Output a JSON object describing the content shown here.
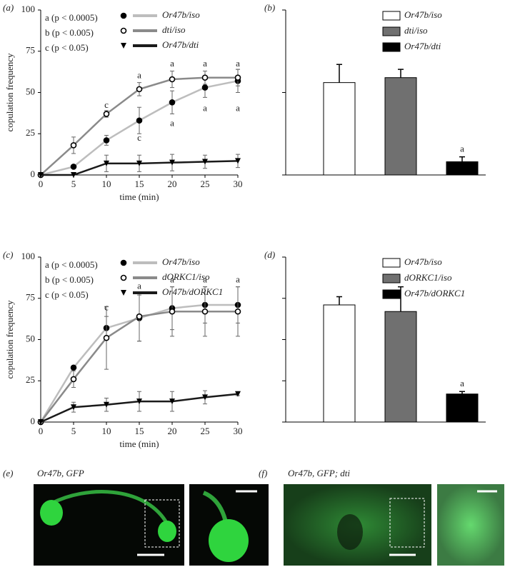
{
  "chart_data": [
    {
      "type": "line",
      "panel": "(a)",
      "ylabel": "copulation frequency",
      "xlabel": "time (min)",
      "notes": [
        "a (p < 0.0005)",
        "b (p < 0.005)",
        "c (p < 0.05)"
      ],
      "x": [
        0,
        5,
        10,
        15,
        20,
        25,
        30
      ],
      "xlim": [
        0,
        30
      ],
      "xticks": [
        0,
        5,
        10,
        15,
        20,
        25,
        30
      ],
      "ylim": [
        0,
        100
      ],
      "yticks": [
        0,
        25,
        50,
        75,
        100
      ],
      "series": [
        {
          "name": "Or47b/iso",
          "color": "#bdbdbd",
          "marker": "circle",
          "values": [
            0,
            5,
            21,
            33,
            44,
            53,
            57
          ],
          "errors": [
            0,
            1,
            3,
            8,
            7,
            6,
            7
          ]
        },
        {
          "name": "dti/iso",
          "color": "#8a8a8a",
          "marker": "open-circle",
          "values": [
            0,
            18,
            37,
            52,
            58,
            59,
            59
          ],
          "errors": [
            0,
            5,
            2,
            4,
            5,
            4,
            5
          ]
        },
        {
          "name": "Or47b/dti",
          "color": "#1a1a1a",
          "marker": "triangle",
          "values": [
            0,
            0,
            7,
            7,
            7.5,
            8,
            8.5
          ],
          "errors": [
            0,
            0,
            5,
            5,
            5,
            4,
            4
          ]
        }
      ],
      "annotations": [
        {
          "text": "c",
          "x": 10,
          "y": 42
        },
        {
          "text": "a",
          "x": 15,
          "y": 60
        },
        {
          "text": "c",
          "x": 15,
          "y": 22
        },
        {
          "text": "a",
          "x": 20,
          "y": 67
        },
        {
          "text": "a",
          "x": 20,
          "y": 31
        },
        {
          "text": "a",
          "x": 25,
          "y": 67
        },
        {
          "text": "a",
          "x": 25,
          "y": 40
        },
        {
          "text": "a",
          "x": 30,
          "y": 67
        },
        {
          "text": "a",
          "x": 30,
          "y": 40
        }
      ]
    },
    {
      "type": "bar",
      "panel": "(b)",
      "categories": [
        "Or47b/iso",
        "dti/iso",
        "Or47b/dti"
      ],
      "colors": [
        "#ffffff",
        "#707070",
        "#000000"
      ],
      "values": [
        56,
        59,
        8
      ],
      "errors": [
        11,
        5,
        3
      ],
      "ylim": [
        0,
        100
      ],
      "yticks": [
        0,
        50,
        100
      ],
      "value_labels": [
        null,
        null,
        "a"
      ]
    },
    {
      "type": "line",
      "panel": "(c)",
      "ylabel": "copulation frequency",
      "xlabel": "time (min)",
      "notes": [
        "a (p < 0.0005)",
        "b (p < 0.005)",
        "c (p < 0.05)"
      ],
      "x": [
        0,
        5,
        10,
        15,
        20,
        25,
        30
      ],
      "xlim": [
        0,
        30
      ],
      "xticks": [
        0,
        5,
        10,
        15,
        20,
        25,
        30
      ],
      "ylim": [
        0,
        100
      ],
      "yticks": [
        0,
        25,
        50,
        75,
        100
      ],
      "series": [
        {
          "name": "Or47b/iso",
          "color": "#bdbdbd",
          "marker": "circle",
          "values": [
            0,
            33,
            57,
            63,
            69,
            71,
            71
          ],
          "errors": [
            0,
            1,
            7,
            14,
            13,
            11,
            11
          ]
        },
        {
          "name": "dORKC1/iso",
          "color": "#8a8a8a",
          "marker": "open-circle",
          "values": [
            0,
            26,
            51,
            64,
            67,
            67,
            67
          ],
          "errors": [
            0,
            5,
            19,
            15,
            15,
            15,
            15
          ]
        },
        {
          "name": "Or47b/dORKC1",
          "color": "#1a1a1a",
          "marker": "triangle",
          "values": [
            0,
            9,
            10.5,
            12.5,
            12.5,
            15,
            17
          ],
          "errors": [
            0,
            3,
            4,
            6,
            6,
            4,
            1
          ]
        }
      ],
      "annotations": [
        {
          "text": "c",
          "x": 10,
          "y": 69
        },
        {
          "text": "a",
          "x": 15,
          "y": 82
        },
        {
          "text": "a",
          "x": 20,
          "y": 86
        },
        {
          "text": "a",
          "x": 25,
          "y": 86
        },
        {
          "text": "a",
          "x": 30,
          "y": 86
        }
      ]
    },
    {
      "type": "bar",
      "panel": "(d)",
      "categories": [
        "Or47b/iso",
        "dORKC1/iso",
        "Or47b/dORKC1"
      ],
      "colors": [
        "#ffffff",
        "#707070",
        "#000000"
      ],
      "values": [
        71,
        67,
        17
      ],
      "errors": [
        5,
        15,
        1.5
      ],
      "ylim": [
        0,
        100
      ],
      "yticks": [
        0,
        25,
        50,
        75,
        100
      ],
      "value_labels": [
        null,
        null,
        "a"
      ]
    }
  ],
  "images": [
    {
      "panel": "(e)",
      "caption": "Or47b, GFP"
    },
    {
      "panel": "(f)",
      "caption": "Or47b, GFP; dti"
    }
  ]
}
